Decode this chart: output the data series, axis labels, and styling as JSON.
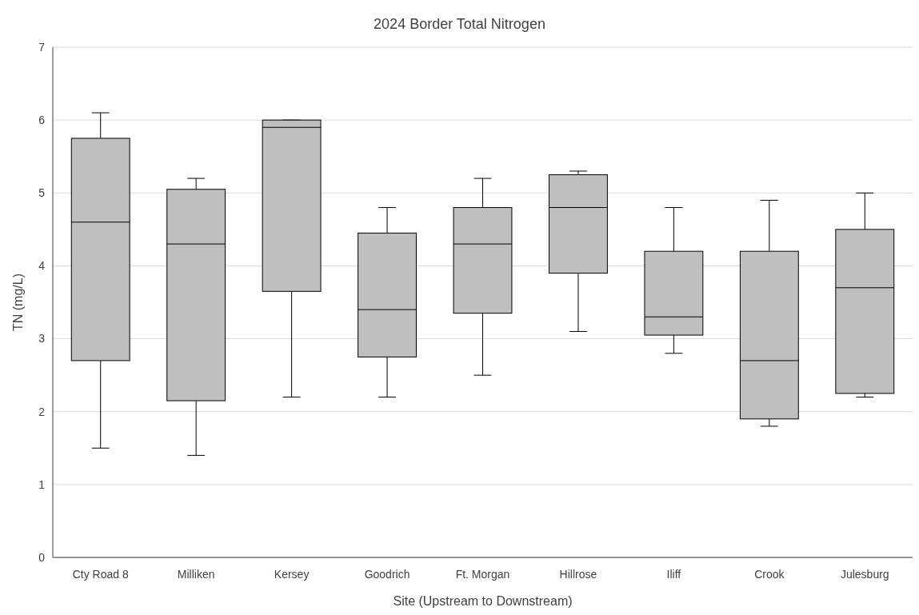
{
  "chart_data": {
    "type": "box",
    "title": "2024 Border Total Nitrogen",
    "xlabel": "Site (Upstream to Downstream)",
    "ylabel": "TN (mg/L)",
    "categories": [
      "Cty Road 8",
      "Milliken",
      "Kersey",
      "Goodrich",
      "Ft. Morgan",
      "Hillrose",
      "Iliff",
      "Crook",
      "Julesburg"
    ],
    "boxes": [
      {
        "low": 1.5,
        "q1": 2.7,
        "median": 4.6,
        "q3": 5.75,
        "high": 6.1
      },
      {
        "low": 1.4,
        "q1": 2.15,
        "median": 4.3,
        "q3": 5.05,
        "high": 5.2
      },
      {
        "low": 2.2,
        "q1": 3.65,
        "median": 5.9,
        "q3": 6.0,
        "high": 6.0
      },
      {
        "low": 2.2,
        "q1": 2.75,
        "median": 3.4,
        "q3": 4.45,
        "high": 4.8
      },
      {
        "low": 2.5,
        "q1": 3.35,
        "median": 4.3,
        "q3": 4.8,
        "high": 5.2
      },
      {
        "low": 3.1,
        "q1": 3.9,
        "median": 4.8,
        "q3": 5.25,
        "high": 5.3
      },
      {
        "low": 2.8,
        "q1": 3.05,
        "median": 3.3,
        "q3": 4.2,
        "high": 4.8
      },
      {
        "low": 1.8,
        "q1": 1.9,
        "median": 2.7,
        "q3": 4.2,
        "high": 4.9
      },
      {
        "low": 2.2,
        "q1": 2.25,
        "median": 3.7,
        "q3": 4.5,
        "high": 5.0
      }
    ],
    "color": "#bfbfbf",
    "ylim": [
      0,
      7
    ],
    "yticks": [
      0,
      1,
      2,
      3,
      4,
      5,
      6,
      7
    ],
    "grid": "y"
  }
}
